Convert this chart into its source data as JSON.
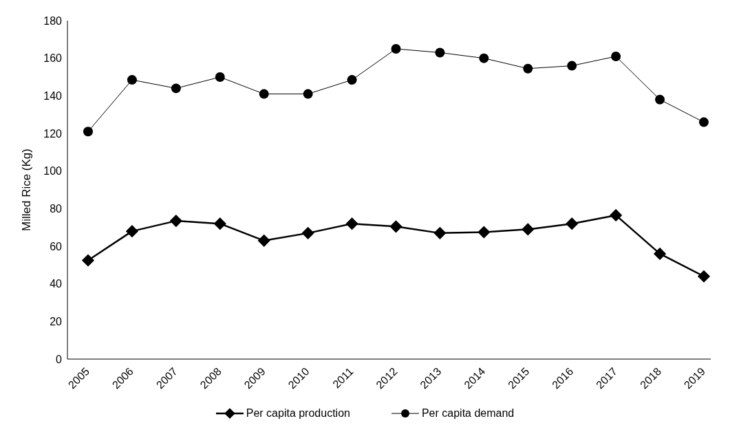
{
  "chart_data": {
    "type": "line",
    "categories": [
      "2005",
      "2006",
      "2007",
      "2008",
      "2009",
      "2010",
      "2011",
      "2012",
      "2013",
      "2014",
      "2015",
      "2016",
      "2017",
      "2018",
      "2019"
    ],
    "series": [
      {
        "name": "Per capita production",
        "color": "#000000",
        "marker": "diamond",
        "values": [
          52.5,
          68,
          73.5,
          72,
          63,
          67,
          72,
          70.5,
          67,
          67.5,
          69,
          72,
          76.5,
          56,
          44
        ]
      },
      {
        "name": "Per capita demand",
        "color": "#000000",
        "marker": "circle",
        "values": [
          121,
          148.5,
          144,
          150,
          141,
          141,
          148.5,
          165,
          163,
          160,
          154.5,
          156,
          161,
          138,
          126
        ]
      }
    ],
    "ylabel": "Milled Rice (Kg)",
    "ylim": [
      0,
      180
    ],
    "yticks": [
      0,
      20,
      40,
      60,
      80,
      100,
      120,
      140,
      160,
      180
    ],
    "grid": false,
    "legend": "bottom"
  }
}
